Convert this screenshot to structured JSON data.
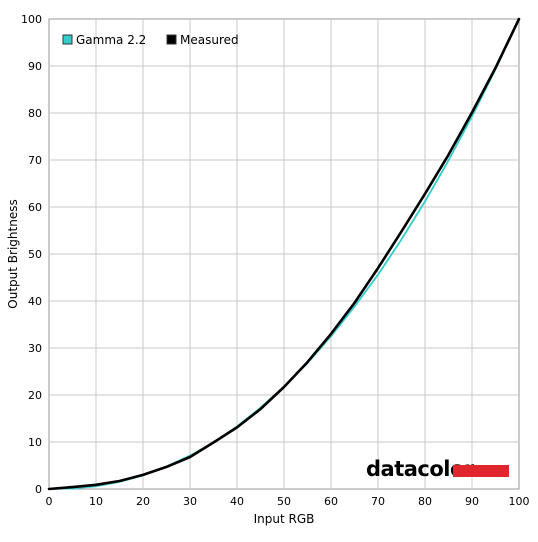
{
  "chart_data": {
    "type": "line",
    "title": "",
    "xlabel": "Input RGB",
    "ylabel": "Output Brightness",
    "xlim": [
      0,
      100
    ],
    "ylim": [
      0,
      100
    ],
    "x_ticks": [
      0,
      10,
      20,
      30,
      40,
      50,
      60,
      70,
      80,
      90,
      100
    ],
    "y_ticks": [
      0,
      10,
      20,
      30,
      40,
      50,
      60,
      70,
      80,
      90,
      100
    ],
    "grid": true,
    "legend_position": "top-left",
    "series": [
      {
        "name": "Gamma 2.2",
        "color": "#33cccc",
        "x": [
          0,
          5,
          10,
          15,
          20,
          25,
          30,
          35,
          40,
          45,
          50,
          55,
          60,
          65,
          70,
          75,
          80,
          85,
          90,
          95,
          100
        ],
        "y": [
          0,
          0.1,
          0.6,
          1.5,
          2.9,
          4.8,
          7.1,
          9.9,
          13.3,
          17.3,
          21.8,
          26.8,
          32.5,
          38.8,
          45.6,
          53.1,
          61.2,
          69.9,
          79.3,
          89.3,
          100
        ]
      },
      {
        "name": "Measured",
        "color": "#000000",
        "x": [
          0,
          5,
          10,
          15,
          20,
          25,
          30,
          35,
          40,
          45,
          50,
          55,
          60,
          65,
          70,
          75,
          80,
          85,
          90,
          95,
          100
        ],
        "y": [
          0,
          0.4,
          0.9,
          1.7,
          3.0,
          4.7,
          6.8,
          9.9,
          13.1,
          17.0,
          21.7,
          27.0,
          33.0,
          39.6,
          47.0,
          54.8,
          62.8,
          71.1,
          80.1,
          89.6,
          100
        ]
      }
    ]
  },
  "logo": {
    "text": "datacolor",
    "bar_color": "#e0262c"
  }
}
